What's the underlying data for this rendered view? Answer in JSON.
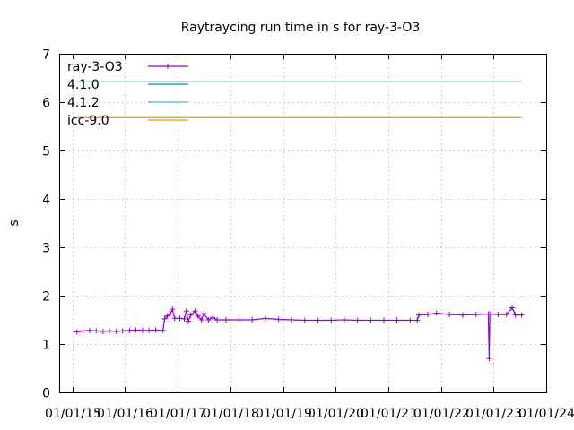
{
  "chart_data": {
    "type": "line",
    "title": "Raytraycing run time in s for ray-3-O3",
    "xlabel": "",
    "ylabel": "s",
    "x_type": "date",
    "xlim": [
      "2014-10-01",
      "2024-01-01"
    ],
    "ylim": [
      0,
      7
    ],
    "y_ticks": [
      0,
      1,
      2,
      3,
      4,
      5,
      6,
      7
    ],
    "x_ticks": [
      "2015-01-01",
      "2016-01-01",
      "2017-01-01",
      "2018-01-01",
      "2019-01-01",
      "2020-01-01",
      "2021-01-01",
      "2022-01-01",
      "2023-01-01",
      "2024-01-01"
    ],
    "x_tick_labels": [
      "01/01/15",
      "01/01/16",
      "01/01/17",
      "01/01/18",
      "01/01/19",
      "01/01/20",
      "01/01/21",
      "01/01/22",
      "01/01/23",
      "01/01/24"
    ],
    "grid": true,
    "legend_position": "top-left",
    "series": [
      {
        "name": "ray-3-O3",
        "style": "linespoints",
        "color": "#9400d3",
        "points": [
          [
            "2015-02-01",
            1.25
          ],
          [
            "2015-03-15",
            1.27
          ],
          [
            "2015-05-01",
            1.28
          ],
          [
            "2015-06-15",
            1.27
          ],
          [
            "2015-08-01",
            1.26
          ],
          [
            "2015-09-15",
            1.27
          ],
          [
            "2015-11-01",
            1.26
          ],
          [
            "2015-12-15",
            1.27
          ],
          [
            "2016-02-01",
            1.28
          ],
          [
            "2016-03-15",
            1.29
          ],
          [
            "2016-05-01",
            1.28
          ],
          [
            "2016-06-15",
            1.28
          ],
          [
            "2016-08-01",
            1.29
          ],
          [
            "2016-09-20",
            1.28
          ],
          [
            "2016-10-01",
            1.52
          ],
          [
            "2016-10-20",
            1.58
          ],
          [
            "2016-11-10",
            1.62
          ],
          [
            "2016-11-25",
            1.72
          ],
          [
            "2016-12-10",
            1.53
          ],
          [
            "2017-01-15",
            1.53
          ],
          [
            "2017-02-15",
            1.52
          ],
          [
            "2017-03-01",
            1.68
          ],
          [
            "2017-03-15",
            1.47
          ],
          [
            "2017-04-01",
            1.6
          ],
          [
            "2017-05-01",
            1.68
          ],
          [
            "2017-05-20",
            1.58
          ],
          [
            "2017-06-15",
            1.5
          ],
          [
            "2017-07-01",
            1.63
          ],
          [
            "2017-08-01",
            1.5
          ],
          [
            "2017-09-01",
            1.55
          ],
          [
            "2017-10-01",
            1.5
          ],
          [
            "2017-12-01",
            1.5
          ],
          [
            "2018-03-01",
            1.5
          ],
          [
            "2018-06-01",
            1.5
          ],
          [
            "2018-09-01",
            1.53
          ],
          [
            "2018-12-01",
            1.51
          ],
          [
            "2019-03-01",
            1.5
          ],
          [
            "2019-06-01",
            1.49
          ],
          [
            "2019-09-01",
            1.49
          ],
          [
            "2019-12-01",
            1.49
          ],
          [
            "2020-03-01",
            1.5
          ],
          [
            "2020-06-01",
            1.49
          ],
          [
            "2020-09-01",
            1.49
          ],
          [
            "2020-12-01",
            1.49
          ],
          [
            "2021-03-01",
            1.49
          ],
          [
            "2021-06-01",
            1.49
          ],
          [
            "2021-07-20",
            1.49
          ],
          [
            "2021-08-01",
            1.6
          ],
          [
            "2021-10-01",
            1.61
          ],
          [
            "2021-12-01",
            1.64
          ],
          [
            "2022-03-01",
            1.61
          ],
          [
            "2022-06-01",
            1.6
          ],
          [
            "2022-09-01",
            1.61
          ],
          [
            "2022-11-25",
            1.62
          ],
          [
            "2022-12-01",
            0.7
          ],
          [
            "2022-12-06",
            1.62
          ],
          [
            "2023-02-01",
            1.61
          ],
          [
            "2023-04-01",
            1.61
          ],
          [
            "2023-05-10",
            1.75
          ],
          [
            "2023-06-01",
            1.6
          ],
          [
            "2023-07-15",
            1.6
          ]
        ]
      },
      {
        "name": "4.1.0",
        "style": "line",
        "color": "#009e73",
        "value": 6.42
      },
      {
        "name": "4.1.2",
        "style": "line",
        "color": "#56b4e9",
        "value": 6.42
      },
      {
        "name": "icc-9.0",
        "style": "line",
        "color": "#e69f00",
        "value": 5.68
      }
    ]
  }
}
